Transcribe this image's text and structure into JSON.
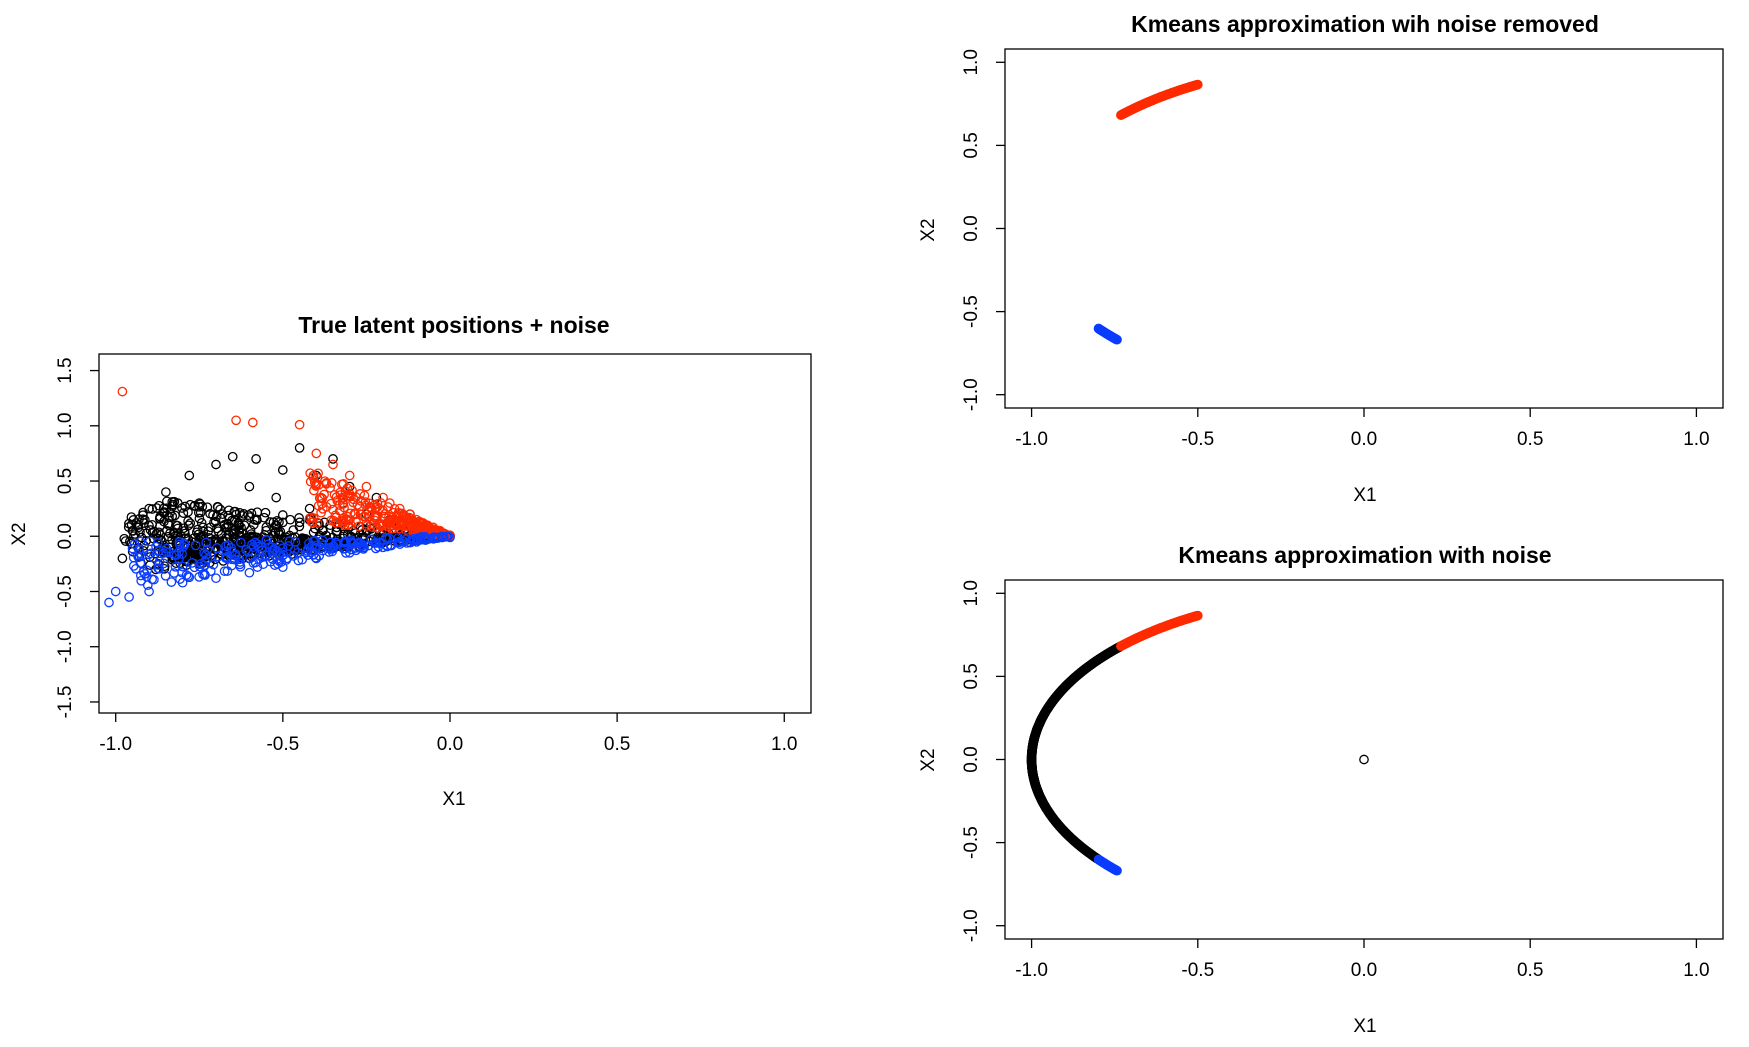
{
  "chart_data": [
    {
      "type": "scatter",
      "title": "True latent positions + noise",
      "xlabel": "X1",
      "ylabel": "X2",
      "xlim": [
        -1.05,
        1.08
      ],
      "ylim": [
        -1.6,
        1.65
      ],
      "xticks": [
        -1.0,
        -0.5,
        0.0,
        0.5,
        1.0
      ],
      "yticks": [
        -1.5,
        -1.0,
        -0.5,
        0.0,
        0.5,
        1.0,
        1.5
      ],
      "xtick_labels": [
        "-1.0",
        "-0.5",
        "0.0",
        "0.5",
        "1.0"
      ],
      "ytick_labels": [
        "-1.5",
        "-1.0",
        "-0.5",
        "0.0",
        "0.5",
        "1.0",
        "1.5"
      ],
      "grid": false,
      "series": [
        {
          "color": "#000000",
          "marker": "open-circle",
          "points": [
            [
              -0.98,
              -0.2
            ],
            [
              -0.95,
              0.05
            ],
            [
              -0.9,
              0.25
            ],
            [
              -0.88,
              -0.3
            ],
            [
              -0.85,
              0.4
            ],
            [
              -0.82,
              0.1
            ],
            [
              -0.8,
              -0.15
            ],
            [
              -0.78,
              0.55
            ],
            [
              -0.75,
              0.3
            ],
            [
              -0.72,
              -0.05
            ],
            [
              -0.7,
              0.65
            ],
            [
              -0.68,
              0.2
            ],
            [
              -0.65,
              0.72
            ],
            [
              -0.62,
              -0.2
            ],
            [
              -0.6,
              0.45
            ],
            [
              -0.58,
              0.7
            ],
            [
              -0.55,
              0.05
            ],
            [
              -0.52,
              0.35
            ],
            [
              -0.5,
              0.6
            ],
            [
              -0.48,
              -0.1
            ],
            [
              -0.45,
              0.8
            ],
            [
              -0.42,
              0.25
            ],
            [
              -0.4,
              0.55
            ],
            [
              -0.38,
              0.05
            ],
            [
              -0.35,
              0.7
            ],
            [
              -0.32,
              0.3
            ],
            [
              -0.3,
              0.45
            ],
            [
              -0.28,
              -0.05
            ],
            [
              -0.25,
              0.2
            ],
            [
              -0.22,
              0.35
            ],
            [
              -0.2,
              0.05
            ],
            [
              -0.18,
              0.15
            ],
            [
              -0.15,
              0.1
            ],
            [
              -0.12,
              0.2
            ],
            [
              -0.1,
              0.02
            ],
            [
              -0.08,
              0.08
            ],
            [
              -0.05,
              0.05
            ],
            [
              -0.03,
              0.02
            ]
          ]
        },
        {
          "color": "#ff2a00",
          "marker": "open-circle",
          "points": [
            [
              -0.98,
              1.31
            ],
            [
              -0.64,
              1.05
            ],
            [
              -0.59,
              1.03
            ],
            [
              -0.45,
              1.01
            ],
            [
              -0.4,
              0.75
            ],
            [
              -0.35,
              0.65
            ],
            [
              -0.3,
              0.55
            ],
            [
              -0.25,
              0.45
            ],
            [
              -0.2,
              0.35
            ],
            [
              -0.18,
              0.3
            ],
            [
              -0.15,
              0.25
            ],
            [
              -0.12,
              0.2
            ],
            [
              -0.1,
              0.15
            ],
            [
              -0.08,
              0.12
            ],
            [
              -0.05,
              0.08
            ],
            [
              -0.03,
              0.05
            ],
            [
              0.0,
              0.01
            ]
          ]
        },
        {
          "color": "#0a3cff",
          "marker": "open-circle",
          "points": [
            [
              -1.02,
              -0.6
            ],
            [
              -1.0,
              -0.5
            ],
            [
              -0.96,
              -0.55
            ],
            [
              -0.9,
              -0.5
            ],
            [
              -0.8,
              -0.42
            ],
            [
              -0.7,
              -0.38
            ],
            [
              -0.6,
              -0.33
            ],
            [
              -0.5,
              -0.28
            ],
            [
              -0.4,
              -0.2
            ],
            [
              -0.3,
              -0.15
            ],
            [
              -0.2,
              -0.1
            ],
            [
              -0.1,
              -0.05
            ],
            [
              -0.05,
              -0.02
            ],
            [
              0.0,
              -0.01
            ]
          ]
        }
      ]
    },
    {
      "type": "scatter",
      "title": "Kmeans approximation wih noise removed",
      "xlabel": "X1",
      "ylabel": "X2",
      "xlim": [
        -1.08,
        1.08
      ],
      "ylim": [
        -1.08,
        1.08
      ],
      "xticks": [
        -1.0,
        -0.5,
        0.0,
        0.5,
        1.0
      ],
      "yticks": [
        -1.0,
        -0.5,
        0.0,
        0.5,
        1.0
      ],
      "xtick_labels": [
        "-1.0",
        "-0.5",
        "0.0",
        "0.5",
        "1.0"
      ],
      "ytick_labels": [
        "-1.0",
        "-0.5",
        "0.0",
        "0.5",
        "1.0"
      ],
      "grid": false,
      "series": [
        {
          "color": "#ff2a00",
          "marker": "open-circle",
          "theta_range_deg": [
            120,
            137
          ]
        },
        {
          "color": "#0a3cff",
          "marker": "open-circle",
          "theta_range_deg": [
            217,
            222
          ]
        }
      ]
    },
    {
      "type": "scatter",
      "title": "Kmeans approximation with noise",
      "xlabel": "X1",
      "ylabel": "X2",
      "xlim": [
        -1.08,
        1.08
      ],
      "ylim": [
        -1.08,
        1.08
      ],
      "xticks": [
        -1.0,
        -0.5,
        0.0,
        0.5,
        1.0
      ],
      "yticks": [
        -1.0,
        -0.5,
        0.0,
        0.5,
        1.0
      ],
      "xtick_labels": [
        "-1.0",
        "-0.5",
        "0.0",
        "0.5",
        "1.0"
      ],
      "ytick_labels": [
        "-1.0",
        "-0.5",
        "0.0",
        "0.5",
        "1.0"
      ],
      "grid": false,
      "series": [
        {
          "color": "#000000",
          "marker": "open-circle",
          "theta_range_deg": [
            137,
            217
          ],
          "extra_points": [
            [
              0.0,
              0.0
            ]
          ]
        },
        {
          "color": "#ff2a00",
          "marker": "open-circle",
          "theta_range_deg": [
            120,
            137
          ]
        },
        {
          "color": "#0a3cff",
          "marker": "open-circle",
          "theta_range_deg": [
            217,
            222
          ]
        }
      ]
    }
  ]
}
